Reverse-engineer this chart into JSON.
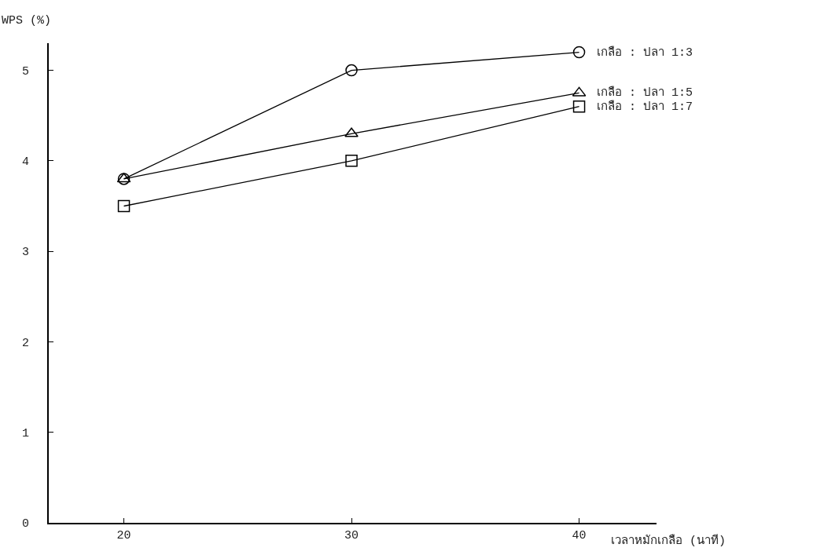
{
  "chart_data": {
    "type": "line",
    "xlabel": "เวลาหมักเกลือ (นาที)",
    "ylabel": "WPS (%)",
    "x": [
      20,
      30,
      40
    ],
    "series": [
      {
        "name": "เกลือ : ปลา 1:3",
        "color": "#000000",
        "marker": "circle",
        "values": [
          3.8,
          5.0,
          5.2
        ]
      },
      {
        "name": "เกลือ : ปลา 1:5",
        "color": "#000000",
        "marker": "triangle",
        "values": [
          3.8,
          4.3,
          4.75
        ]
      },
      {
        "name": "เกลือ : ปลา 1:7",
        "color": "#000000",
        "marker": "square",
        "values": [
          3.5,
          4.0,
          4.6
        ]
      }
    ],
    "xlim": [
      16.7,
      43.4
    ],
    "ylim": [
      0,
      5.3
    ],
    "xticks": [
      20,
      30,
      40
    ],
    "yticks": [
      0,
      1,
      2,
      3,
      4,
      5
    ],
    "legend": false,
    "line_style": "solid"
  }
}
